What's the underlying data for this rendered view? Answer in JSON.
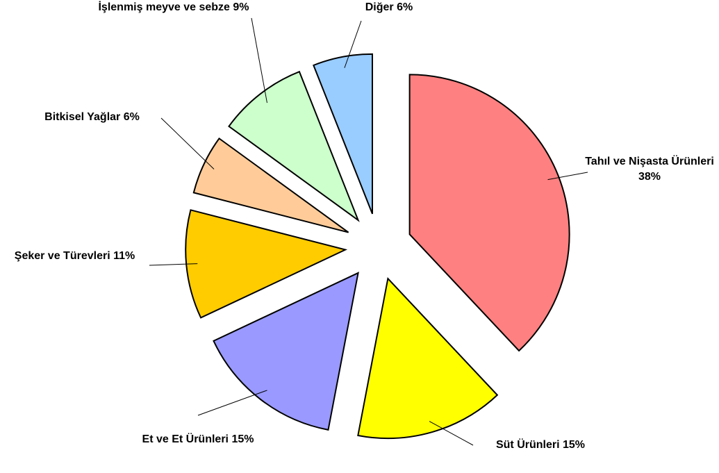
{
  "chart_data": {
    "type": "pie",
    "categories": [
      "Tahıl ve Nişasta Ürünleri",
      "Süt Ürünleri",
      "Et ve Et Ürünleri",
      "Şeker ve Türevleri",
      "Bitkisel Yağlar",
      "İşlenmiş meyve ve sebze",
      "Diğer"
    ],
    "values": [
      38,
      15,
      15,
      11,
      6,
      9,
      6
    ],
    "value_labels": [
      "38%",
      "15%",
      "15%",
      "11%",
      "6%",
      "9%",
      "6%"
    ],
    "colors": [
      "#ff8080",
      "#ffff00",
      "#9999ff",
      "#ffcc00",
      "#ffcc99",
      "#ccffcc",
      "#99ccff"
    ]
  }
}
